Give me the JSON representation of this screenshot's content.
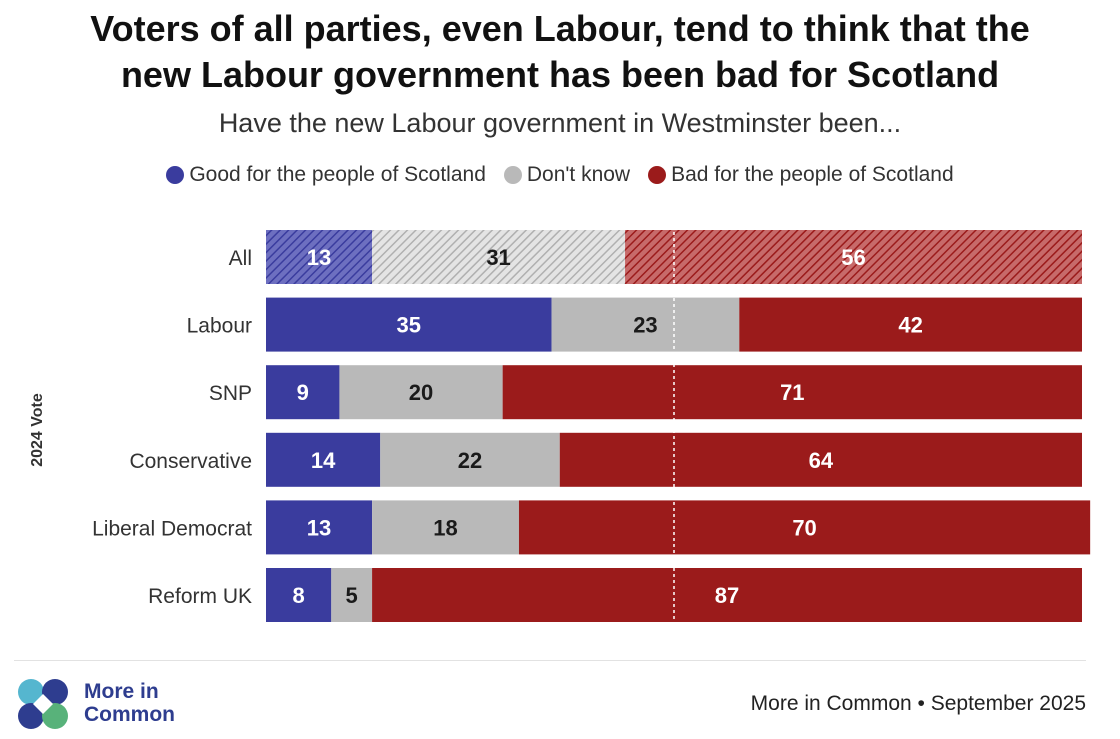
{
  "title_line1": "Voters of all parties, even Labour, tend to think that the",
  "title_line2": "new Labour government has been bad for Scotland",
  "subtitle": "Have the new Labour government in Westminster been...",
  "legend": {
    "good": "Good for the people of Scotland",
    "dont_know": "Don't know",
    "bad": "Bad for the people of Scotland"
  },
  "colors": {
    "good": "#3a3c9e",
    "dont_know": "#b9b9b9",
    "bad": "#9b1b1b",
    "logo_blue": "#2e3d8f",
    "logo_teal": "#55b6cf",
    "logo_green": "#58b27a"
  },
  "footer": {
    "logo_line1": "More in",
    "logo_line2": "Common",
    "source": "More in Common • September 2025"
  },
  "chart_data": {
    "type": "bar",
    "orientation": "horizontal",
    "stacked": true,
    "ylabel": "2024 Vote",
    "categories": [
      "All",
      "Labour",
      "SNP",
      "Conservative",
      "Liberal Democrat",
      "Reform UK"
    ],
    "hatched_categories": [
      "All"
    ],
    "series": [
      {
        "name": "Good for the people of Scotland",
        "key": "good",
        "values": [
          13,
          35,
          9,
          14,
          13,
          8
        ]
      },
      {
        "name": "Don't know",
        "key": "dont_know",
        "values": [
          31,
          23,
          20,
          22,
          18,
          5
        ]
      },
      {
        "name": "Bad for the people of Scotland",
        "key": "bad",
        "values": [
          56,
          42,
          71,
          64,
          70,
          87
        ]
      }
    ],
    "xlim": [
      0,
      100
    ],
    "reference_line": 50
  }
}
